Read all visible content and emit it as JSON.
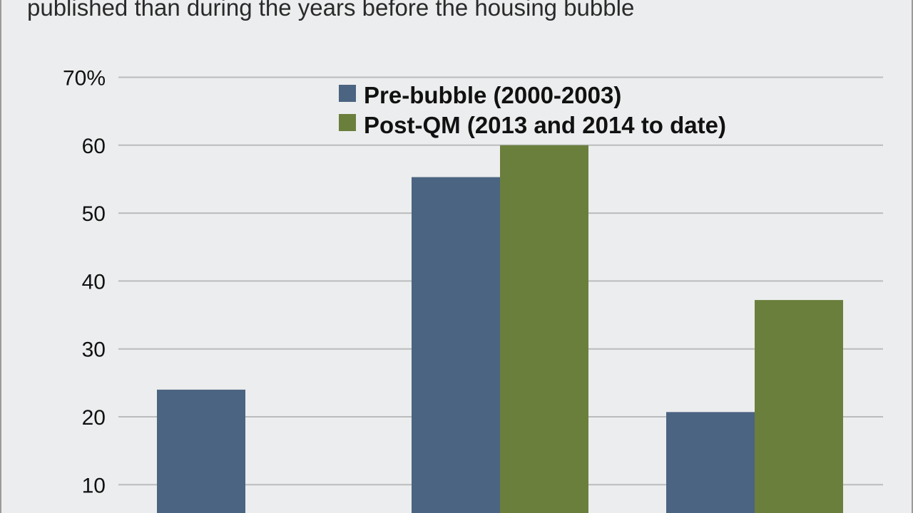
{
  "subtitle": "published than during the years before the housing bubble",
  "colors": {
    "background": "#ecedee",
    "pre_bubble": "#4b6481",
    "post_qm": "#6b7f3c",
    "gridline": "#b9bbbe",
    "frame": "#9a9a9a"
  },
  "chart_data": {
    "type": "bar",
    "title": "",
    "subtitle": "published than during the years before the housing bubble",
    "xlabel": "",
    "ylabel": "",
    "categories": [
      "",
      "",
      ""
    ],
    "series": [
      {
        "name": "Pre-bubble (2000-2003)",
        "color": "#4b6481",
        "values": [
          24,
          55.3,
          20.7
        ]
      },
      {
        "name": "Post-QM (2013 and 2014 to date)",
        "color": "#6b7f3c",
        "values": [
          null,
          60,
          37.2
        ]
      }
    ],
    "ylim": [
      0,
      70
    ],
    "yticks": [
      10,
      20,
      30,
      40,
      50,
      60,
      70
    ],
    "ytick_labels": [
      "10",
      "20",
      "30",
      "40",
      "50",
      "60",
      "70%"
    ],
    "grid": true,
    "legend_position": "top-center"
  }
}
